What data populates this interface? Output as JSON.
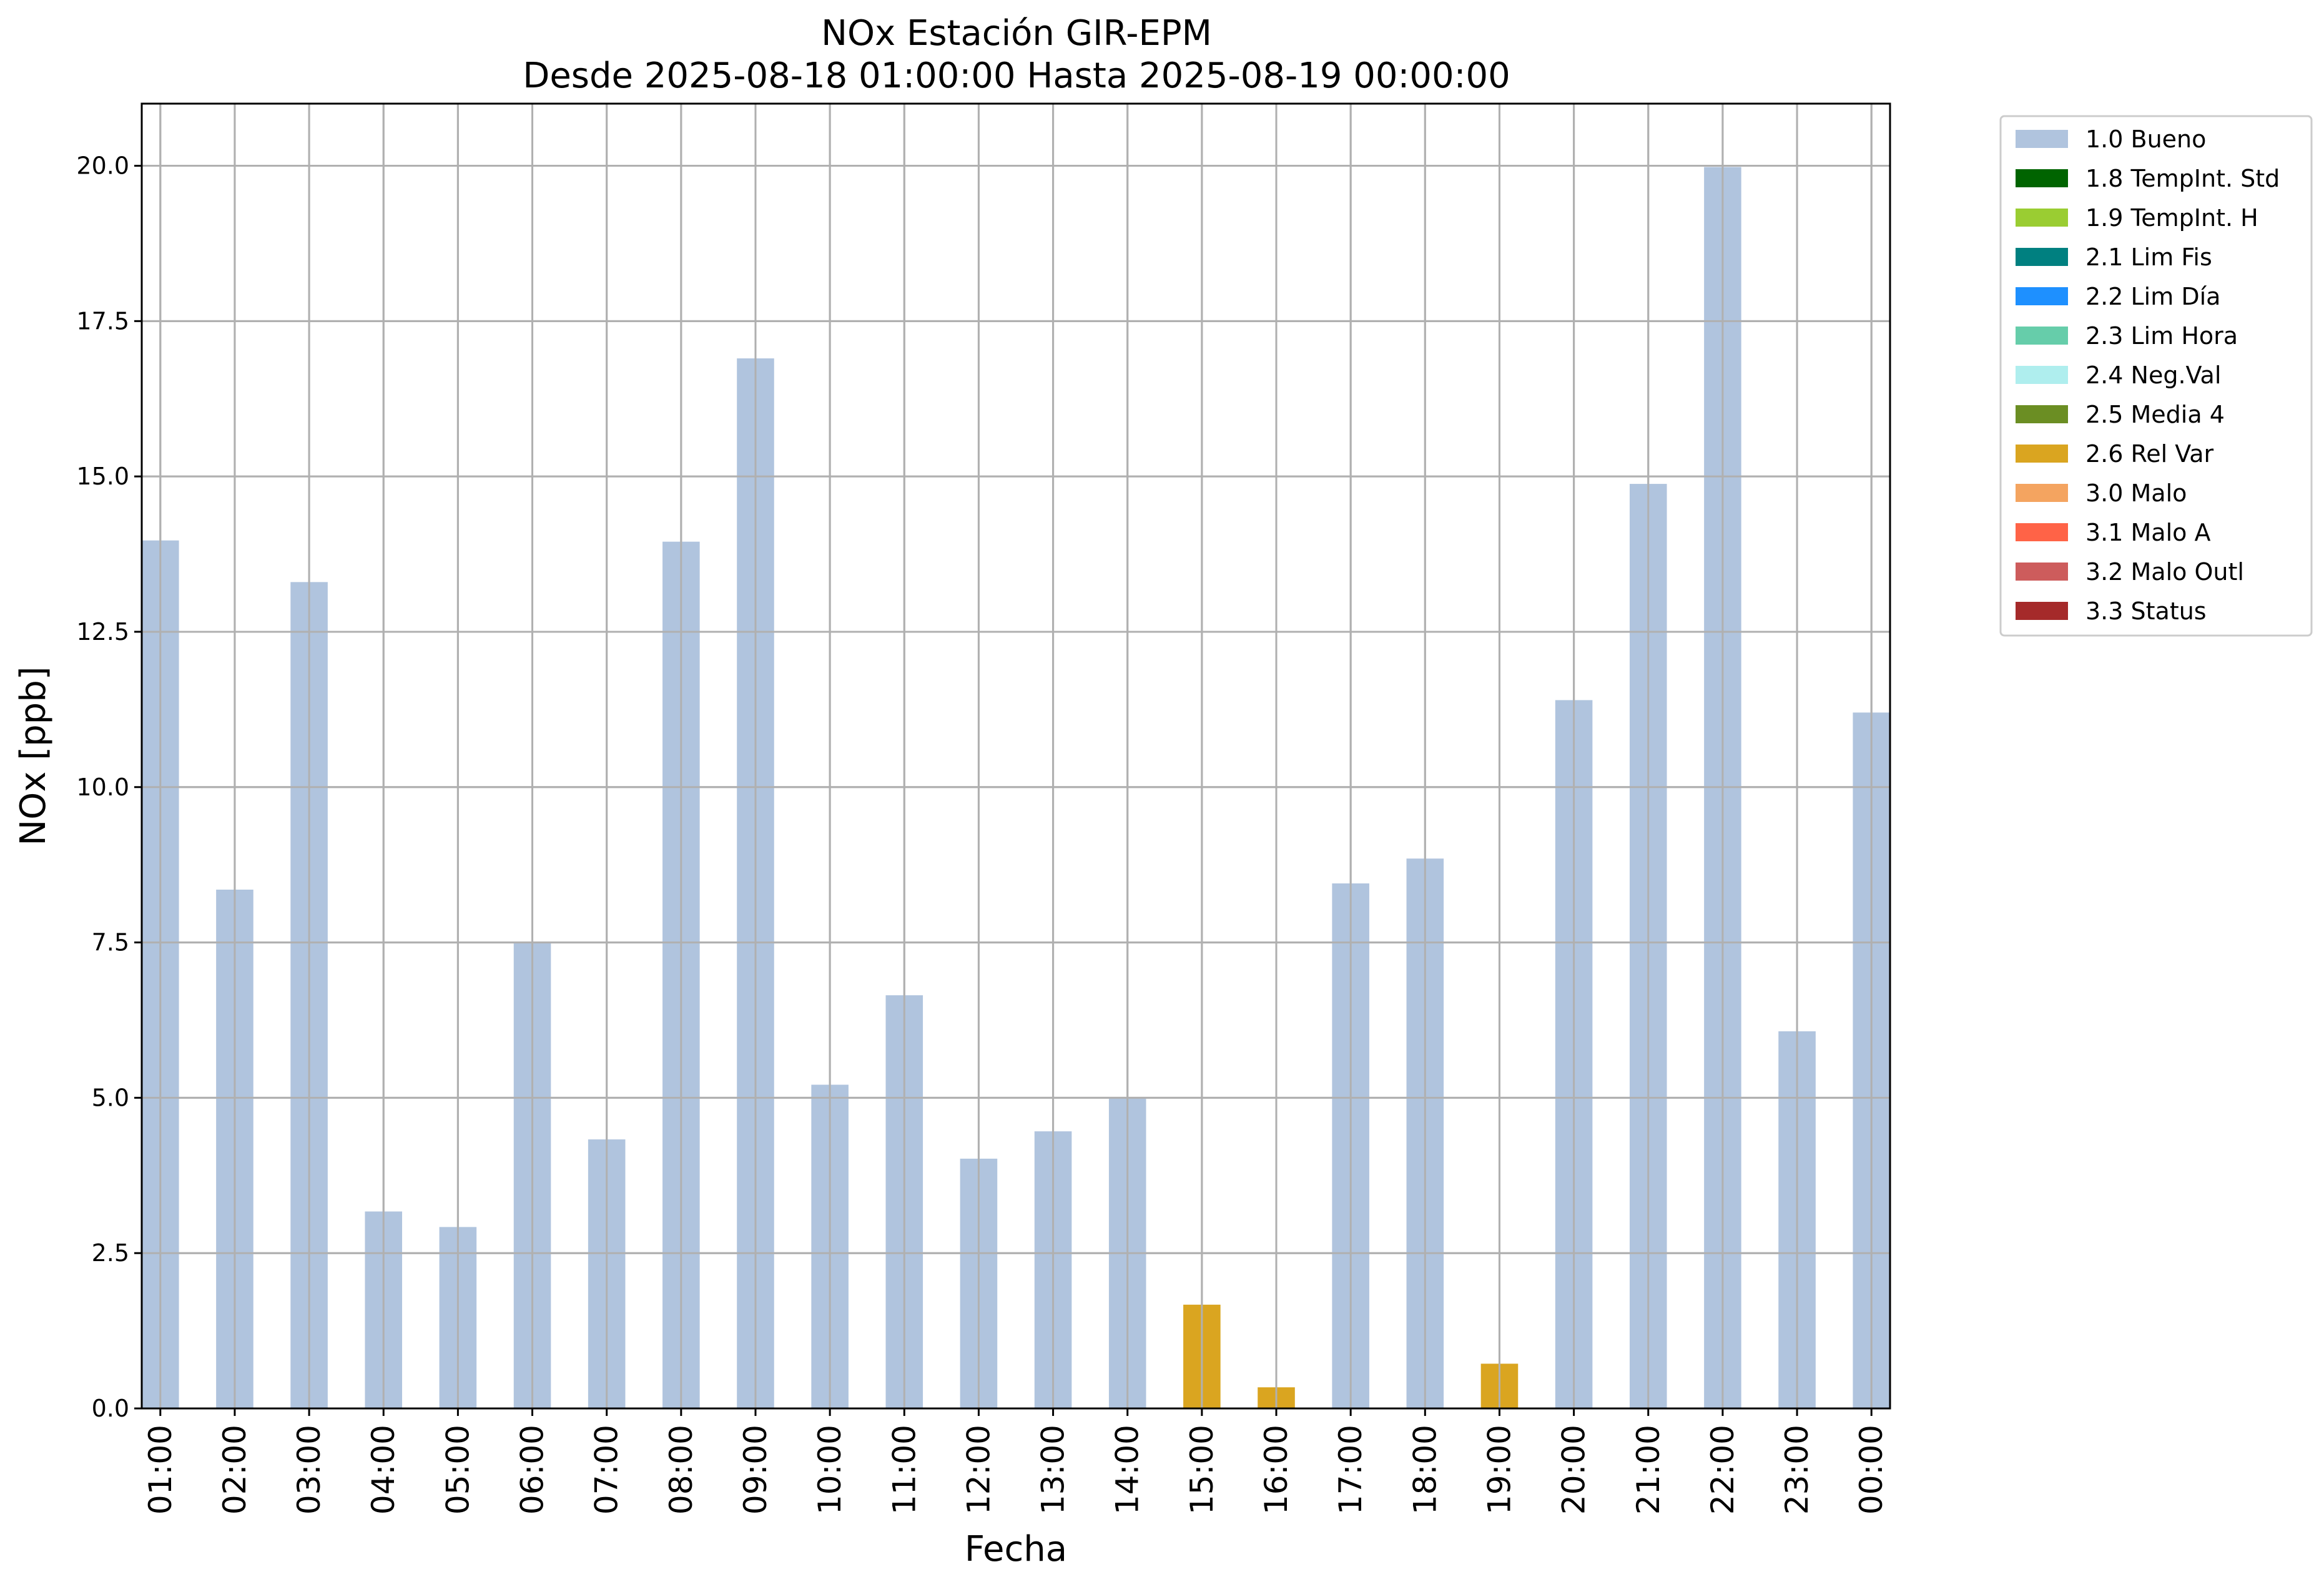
{
  "chart_data": {
    "type": "bar",
    "title": "NOx Estación GIR-EPM",
    "subtitle": "Desde 2025-08-18 01:00:00 Hasta 2025-08-19 00:00:00",
    "xlabel": "Fecha",
    "ylabel": "NOx [ppb]",
    "ylim": [
      0,
      21
    ],
    "yticks": [
      "0.0",
      "2.5",
      "5.0",
      "7.5",
      "10.0",
      "12.5",
      "15.0",
      "17.5",
      "20.0"
    ],
    "grid": true,
    "legend_position": "outside-top-right",
    "categories": [
      "01:00",
      "02:00",
      "03:00",
      "04:00",
      "05:00",
      "06:00",
      "07:00",
      "08:00",
      "09:00",
      "10:00",
      "11:00",
      "12:00",
      "13:00",
      "14:00",
      "15:00",
      "16:00",
      "17:00",
      "18:00",
      "19:00",
      "20:00",
      "21:00",
      "22:00",
      "23:00",
      "00:00"
    ],
    "values": [
      13.97,
      8.35,
      13.3,
      3.17,
      2.92,
      7.5,
      4.33,
      13.95,
      16.9,
      5.21,
      6.65,
      4.02,
      4.46,
      4.99,
      1.67,
      0.34,
      8.45,
      8.85,
      0.72,
      11.4,
      14.88,
      19.98,
      6.07,
      11.2
    ],
    "flags": [
      "1.0 Bueno",
      "1.0 Bueno",
      "1.0 Bueno",
      "1.0 Bueno",
      "1.0 Bueno",
      "1.0 Bueno",
      "1.0 Bueno",
      "1.0 Bueno",
      "1.0 Bueno",
      "1.0 Bueno",
      "1.0 Bueno",
      "1.0 Bueno",
      "1.0 Bueno",
      "1.0 Bueno",
      "2.6 Rel Var",
      "2.6 Rel Var",
      "1.0 Bueno",
      "1.0 Bueno",
      "2.6 Rel Var",
      "1.0 Bueno",
      "1.0 Bueno",
      "1.0 Bueno",
      "1.0 Bueno",
      "1.0 Bueno"
    ],
    "legend": [
      {
        "name": "1.0 Bueno",
        "color": "#b0c4de"
      },
      {
        "name": "1.8 TempInt. Std",
        "color": "#006400"
      },
      {
        "name": "1.9 TempInt. H",
        "color": "#9acd32"
      },
      {
        "name": "2.1 Lim Fis",
        "color": "#008080"
      },
      {
        "name": "2.2 Lim Día",
        "color": "#1e90ff"
      },
      {
        "name": "2.3 Lim Hora",
        "color": "#66cdaa"
      },
      {
        "name": "2.4 Neg.Val",
        "color": "#afeeee"
      },
      {
        "name": "2.5 Media 4",
        "color": "#6b8e23"
      },
      {
        "name": "2.6 Rel Var",
        "color": "#daa520"
      },
      {
        "name": "3.0 Malo",
        "color": "#f4a460"
      },
      {
        "name": "3.1 Malo A",
        "color": "#ff6347"
      },
      {
        "name": "3.2 Malo Outl",
        "color": "#cd5c5c"
      },
      {
        "name": "3.3 Status",
        "color": "#a52a2a"
      }
    ]
  }
}
